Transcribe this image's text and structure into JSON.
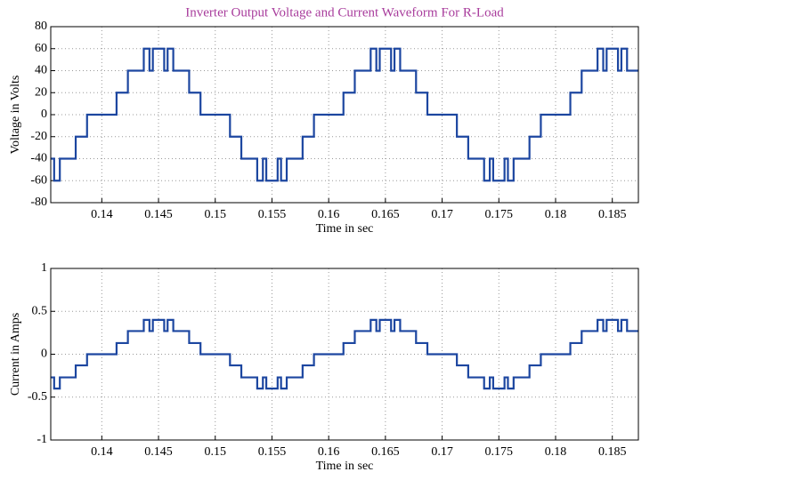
{
  "chart_data": [
    {
      "type": "line",
      "title": "Inverter Output Voltage and Current Waveform For R-Load",
      "xlabel": "Time in sec",
      "ylabel": "Voltage in Volts",
      "x": [
        0.1355,
        0.1358,
        0.1358,
        0.1363,
        0.1363,
        0.1377,
        0.1377,
        0.1387,
        0.1387,
        0.1413,
        0.1413,
        0.1423,
        0.1423,
        0.1437,
        0.1437,
        0.1442,
        0.1442,
        0.1445,
        0.1445,
        0.1455,
        0.1455,
        0.1458,
        0.1458,
        0.1463,
        0.1463,
        0.1477,
        0.1477,
        0.1487,
        0.1487,
        0.1513,
        0.1513,
        0.1523,
        0.1523,
        0.1537,
        0.1537,
        0.1542,
        0.1542,
        0.1545,
        0.1545,
        0.1555,
        0.1555,
        0.1558,
        0.1558,
        0.1563,
        0.1563,
        0.1577,
        0.1577,
        0.1587,
        0.1587,
        0.1613,
        0.1613,
        0.1623,
        0.1623,
        0.1637,
        0.1637,
        0.1642,
        0.1642,
        0.1645,
        0.1645,
        0.1655,
        0.1655,
        0.1658,
        0.1658,
        0.1663,
        0.1663,
        0.1677,
        0.1677,
        0.1687,
        0.1687,
        0.1713,
        0.1713,
        0.1723,
        0.1723,
        0.1737,
        0.1737,
        0.1742,
        0.1742,
        0.1745,
        0.1745,
        0.1755,
        0.1755,
        0.1758,
        0.1758,
        0.1763,
        0.1763,
        0.1777,
        0.1777,
        0.1787,
        0.1787,
        0.1813,
        0.1813,
        0.1823,
        0.1823,
        0.1837,
        0.1837,
        0.1842,
        0.1842,
        0.1845,
        0.1845,
        0.1855,
        0.1855,
        0.1858,
        0.1858,
        0.1863,
        0.1863,
        0.1873
      ],
      "series": [
        {
          "color": "#1c46a0",
          "values": [
            -40,
            -40,
            -60,
            -60,
            -40,
            -40,
            -20,
            -20,
            0,
            0,
            20,
            20,
            40,
            40,
            60,
            60,
            40,
            40,
            60,
            60,
            40,
            40,
            60,
            60,
            40,
            40,
            20,
            20,
            0,
            0,
            -20,
            -20,
            -40,
            -40,
            -60,
            -60,
            -40,
            -40,
            -60,
            -60,
            -40,
            -40,
            -60,
            -60,
            -40,
            -40,
            -20,
            -20,
            0,
            0,
            20,
            20,
            40,
            40,
            60,
            60,
            40,
            40,
            60,
            60,
            40,
            40,
            60,
            60,
            40,
            40,
            20,
            20,
            0,
            0,
            -20,
            -20,
            -40,
            -40,
            -60,
            -60,
            -40,
            -40,
            -60,
            -60,
            -40,
            -40,
            -60,
            -60,
            -40,
            -40,
            -20,
            -20,
            0,
            0,
            20,
            20,
            40,
            40,
            60,
            60,
            40,
            40,
            60,
            60,
            40,
            40,
            60,
            60,
            40,
            40
          ]
        }
      ],
      "xlim": [
        0.1355,
        0.1873
      ],
      "xticks": [
        0.14,
        0.145,
        0.15,
        0.155,
        0.16,
        0.165,
        0.17,
        0.175,
        0.18,
        0.185
      ],
      "ylim": [
        -80,
        80
      ],
      "yticks": [
        -80,
        -60,
        -40,
        -20,
        0,
        20,
        40,
        60,
        80
      ],
      "grid": true
    },
    {
      "type": "line",
      "xlabel": "Time in sec",
      "ylabel": "Current in Amps",
      "x": [
        0.1355,
        0.1358,
        0.1358,
        0.1363,
        0.1363,
        0.1377,
        0.1377,
        0.1387,
        0.1387,
        0.1413,
        0.1413,
        0.1423,
        0.1423,
        0.1437,
        0.1437,
        0.1442,
        0.1442,
        0.1445,
        0.1445,
        0.1455,
        0.1455,
        0.1458,
        0.1458,
        0.1463,
        0.1463,
        0.1477,
        0.1477,
        0.1487,
        0.1487,
        0.1513,
        0.1513,
        0.1523,
        0.1523,
        0.1537,
        0.1537,
        0.1542,
        0.1542,
        0.1545,
        0.1545,
        0.1555,
        0.1555,
        0.1558,
        0.1558,
        0.1563,
        0.1563,
        0.1577,
        0.1577,
        0.1587,
        0.1587,
        0.1613,
        0.1613,
        0.1623,
        0.1623,
        0.1637,
        0.1637,
        0.1642,
        0.1642,
        0.1645,
        0.1645,
        0.1655,
        0.1655,
        0.1658,
        0.1658,
        0.1663,
        0.1663,
        0.1677,
        0.1677,
        0.1687,
        0.1687,
        0.1713,
        0.1713,
        0.1723,
        0.1723,
        0.1737,
        0.1737,
        0.1742,
        0.1742,
        0.1745,
        0.1745,
        0.1755,
        0.1755,
        0.1758,
        0.1758,
        0.1763,
        0.1763,
        0.1777,
        0.1777,
        0.1787,
        0.1787,
        0.1813,
        0.1813,
        0.1823,
        0.1823,
        0.1837,
        0.1837,
        0.1842,
        0.1842,
        0.1845,
        0.1845,
        0.1855,
        0.1855,
        0.1858,
        0.1858,
        0.1863,
        0.1863,
        0.1873
      ],
      "series": [
        {
          "color": "#1c46a0",
          "values": [
            -0.27,
            -0.27,
            -0.4,
            -0.4,
            -0.27,
            -0.27,
            -0.13,
            -0.13,
            0,
            0,
            0.13,
            0.13,
            0.27,
            0.27,
            0.4,
            0.4,
            0.27,
            0.27,
            0.4,
            0.4,
            0.27,
            0.27,
            0.4,
            0.4,
            0.27,
            0.27,
            0.13,
            0.13,
            0,
            0,
            -0.13,
            -0.13,
            -0.27,
            -0.27,
            -0.4,
            -0.4,
            -0.27,
            -0.27,
            -0.4,
            -0.4,
            -0.27,
            -0.27,
            -0.4,
            -0.4,
            -0.27,
            -0.27,
            -0.13,
            -0.13,
            0,
            0,
            0.13,
            0.13,
            0.27,
            0.27,
            0.4,
            0.4,
            0.27,
            0.27,
            0.4,
            0.4,
            0.27,
            0.27,
            0.4,
            0.4,
            0.27,
            0.27,
            0.13,
            0.13,
            0,
            0,
            -0.13,
            -0.13,
            -0.27,
            -0.27,
            -0.4,
            -0.4,
            -0.27,
            -0.27,
            -0.4,
            -0.4,
            -0.27,
            -0.27,
            -0.4,
            -0.4,
            -0.27,
            -0.27,
            -0.13,
            -0.13,
            0,
            0,
            0.13,
            0.13,
            0.27,
            0.27,
            0.4,
            0.4,
            0.27,
            0.27,
            0.4,
            0.4,
            0.27,
            0.27,
            0.4,
            0.4,
            0.27,
            0.27
          ]
        }
      ],
      "xlim": [
        0.1355,
        0.1873
      ],
      "xticks": [
        0.14,
        0.145,
        0.15,
        0.155,
        0.16,
        0.165,
        0.17,
        0.175,
        0.18,
        0.185
      ],
      "ylim": [
        -1,
        1
      ],
      "yticks": [
        -1,
        -0.5,
        0,
        0.5,
        1
      ],
      "grid": true
    }
  ]
}
